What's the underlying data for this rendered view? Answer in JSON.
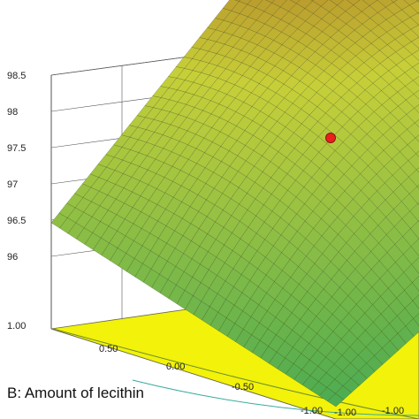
{
  "chart_data": {
    "type": "surface",
    "title": "",
    "z_axis": {
      "ticks": [
        "98.5",
        "98",
        "97.5",
        "97",
        "96.5",
        "96"
      ],
      "values": [
        98.5,
        98,
        97.5,
        97,
        96.5,
        96
      ]
    },
    "b_axis": {
      "label": "B: Amount of lecithin",
      "ticks": [
        "1.00",
        "0.50",
        "0.00",
        "-0.50",
        "-1.00"
      ],
      "range": [
        -1,
        1
      ]
    },
    "a_axis": {
      "ticks": [
        "-1.00",
        "-1.00"
      ]
    },
    "surface_corners": [
      {
        "a": -1,
        "b": 1,
        "value": 96.8
      },
      {
        "a": 1,
        "b": 1,
        "value": 98.3
      },
      {
        "a": -1,
        "b": -1,
        "value": 96.0
      },
      {
        "a": 1,
        "b": -1,
        "value": 96.8
      }
    ],
    "surface_peak": {
      "value": 98.5
    },
    "design_point": {
      "a": 0,
      "b": 0,
      "value": 97.7,
      "color": "#e8201e"
    },
    "colors": {
      "surface_low": "#4cab52",
      "surface_mid": "#c7cf38",
      "surface_high": "#a33a17",
      "floor": "#f2f20a",
      "frame": "#555555"
    },
    "grid": true
  }
}
